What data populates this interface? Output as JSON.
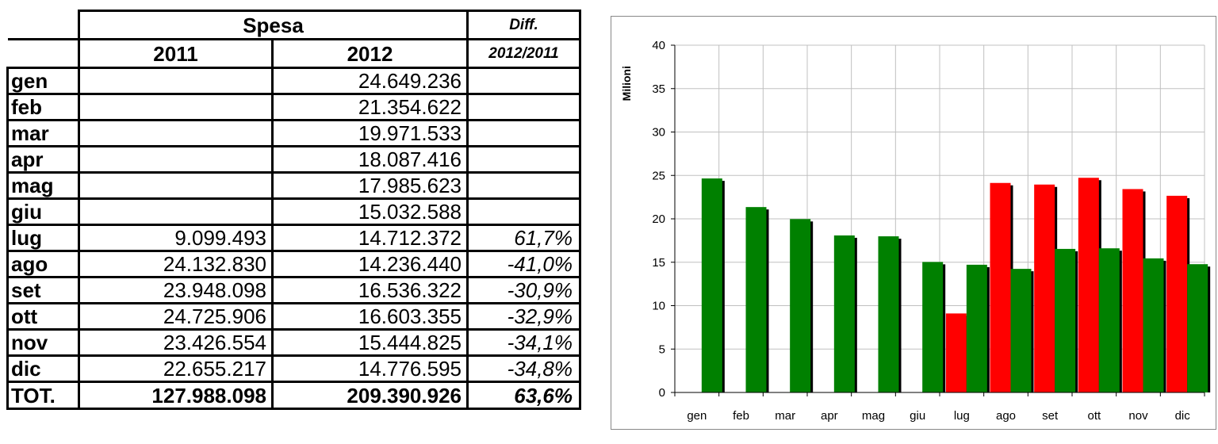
{
  "table": {
    "header_group": "Spesa",
    "header_diff_line1": "Diff.",
    "header_diff_line2": "2012/2011",
    "year_2011": "2011",
    "year_2012": "2012",
    "rows": [
      {
        "month": "gen",
        "v2011": "",
        "v2012": "24.649.236",
        "diff": ""
      },
      {
        "month": "feb",
        "v2011": "",
        "v2012": "21.354.622",
        "diff": ""
      },
      {
        "month": "mar",
        "v2011": "",
        "v2012": "19.971.533",
        "diff": ""
      },
      {
        "month": "apr",
        "v2011": "",
        "v2012": "18.087.416",
        "diff": ""
      },
      {
        "month": "mag",
        "v2011": "",
        "v2012": "17.985.623",
        "diff": ""
      },
      {
        "month": "giu",
        "v2011": "",
        "v2012": "15.032.588",
        "diff": ""
      },
      {
        "month": "lug",
        "v2011": "9.099.493",
        "v2012": "14.712.372",
        "diff": "61,7%"
      },
      {
        "month": "ago",
        "v2011": "24.132.830",
        "v2012": "14.236.440",
        "diff": "-41,0%"
      },
      {
        "month": "set",
        "v2011": "23.948.098",
        "v2012": "16.536.322",
        "diff": "-30,9%"
      },
      {
        "month": "ott",
        "v2011": "24.725.906",
        "v2012": "16.603.355",
        "diff": "-32,9%"
      },
      {
        "month": "nov",
        "v2011": "23.426.554",
        "v2012": "15.444.825",
        "diff": "-34,1%"
      },
      {
        "month": "dic",
        "v2011": "22.655.217",
        "v2012": "14.776.595",
        "diff": "-34,8%"
      }
    ],
    "total": {
      "month": "TOT.",
      "v2011": "127.988.098",
      "v2012": "209.390.926",
      "diff": "63,6%"
    }
  },
  "chart_data": {
    "type": "bar",
    "title": "",
    "xlabel": "",
    "ylabel": "Milioni",
    "ylim": [
      0,
      40
    ],
    "yticks": [
      0,
      5,
      10,
      15,
      20,
      25,
      30,
      35,
      40
    ],
    "grid": true,
    "legend": "none",
    "categories": [
      "gen",
      "feb",
      "mar",
      "apr",
      "mag",
      "giu",
      "lug",
      "ago",
      "set",
      "ott",
      "nov",
      "dic"
    ],
    "series": [
      {
        "color": "#ff0000",
        "values": [
          null,
          null,
          null,
          null,
          null,
          null,
          9.099493,
          24.13283,
          23.948098,
          24.725906,
          23.426554,
          22.655217
        ]
      },
      {
        "color": "#008000",
        "values": [
          24.649236,
          21.354622,
          19.971533,
          18.087416,
          17.985623,
          15.032588,
          14.712372,
          14.23644,
          16.536322,
          16.603355,
          15.444825,
          14.776595
        ]
      }
    ]
  }
}
